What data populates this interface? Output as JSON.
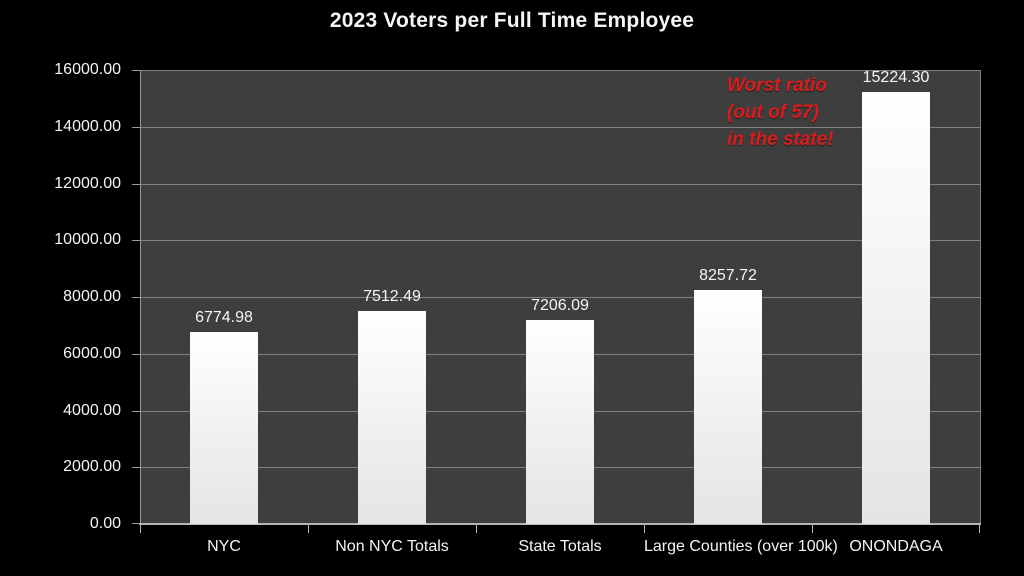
{
  "chart_data": {
    "type": "bar",
    "title": "2023 Voters per Full Time Employee",
    "categories": [
      "NYC",
      "Non NYC Totals",
      "State Totals",
      "Large Counties (over 100k)",
      "ONONDAGA"
    ],
    "values": [
      6774.98,
      7512.49,
      7206.09,
      8257.72,
      15224.3
    ],
    "value_labels": [
      "6774.98",
      "7512.49",
      "7206.09",
      "8257.72",
      "15224.30"
    ],
    "xlabel": "",
    "ylabel": "",
    "ylim": [
      0,
      16000
    ],
    "y_tick_step": 2000,
    "y_tick_labels": [
      "0.00",
      "2000.00",
      "4000.00",
      "6000.00",
      "8000.00",
      "10000.00",
      "12000.00",
      "14000.00",
      "16000.00"
    ],
    "grid": true,
    "legend": "none",
    "annotation": {
      "lines": [
        "Worst ratio",
        "(out of 57)",
        "in the state!"
      ],
      "color": "#d91c1c"
    },
    "colors": {
      "background": "#000000",
      "plot_background": "#3e3e3e",
      "gridline": "#808080",
      "y_axis": "#9a9a9a",
      "x_axis": "#b5b5b5",
      "bar_top": "#ffffff",
      "bar_bottom": "#e4e4e4",
      "text": "#f5f5f5"
    }
  }
}
